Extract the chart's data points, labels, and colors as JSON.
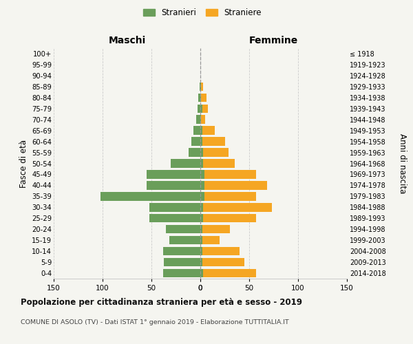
{
  "age_groups": [
    "0-4",
    "5-9",
    "10-14",
    "15-19",
    "20-24",
    "25-29",
    "30-34",
    "35-39",
    "40-44",
    "45-49",
    "50-54",
    "55-59",
    "60-64",
    "65-69",
    "70-74",
    "75-79",
    "80-84",
    "85-89",
    "90-94",
    "95-99",
    "100+"
  ],
  "birth_years": [
    "2014-2018",
    "2009-2013",
    "2004-2008",
    "1999-2003",
    "1994-1998",
    "1989-1993",
    "1984-1988",
    "1979-1983",
    "1974-1978",
    "1969-1973",
    "1964-1968",
    "1959-1963",
    "1954-1958",
    "1949-1953",
    "1944-1948",
    "1939-1943",
    "1934-1938",
    "1929-1933",
    "1924-1928",
    "1919-1923",
    "≤ 1918"
  ],
  "maschi": [
    38,
    37,
    38,
    32,
    35,
    52,
    52,
    102,
    55,
    55,
    30,
    12,
    9,
    7,
    4,
    3,
    2,
    1,
    0,
    0,
    0
  ],
  "femmine": [
    57,
    45,
    40,
    20,
    30,
    57,
    73,
    57,
    68,
    57,
    35,
    29,
    25,
    15,
    5,
    8,
    6,
    3,
    0,
    0,
    0
  ],
  "femmine_green": [
    3,
    2,
    2,
    2,
    2,
    3,
    3,
    4,
    4,
    4,
    3,
    3,
    2,
    2,
    1,
    2,
    1,
    1,
    0,
    0,
    0
  ],
  "color_maschi": "#6a9e5a",
  "color_femmine": "#f5a623",
  "title": "Popolazione per cittadinanza straniera per età e sesso - 2019",
  "subtitle": "COMUNE DI ASOLO (TV) - Dati ISTAT 1° gennaio 2019 - Elaborazione TUTTITALIA.IT",
  "ylabel_left": "Fasce di età",
  "ylabel_right": "Anni di nascita",
  "label_maschi": "Stranieri",
  "label_femmine": "Straniere",
  "header_left": "Maschi",
  "header_right": "Femmine",
  "xlim": 150,
  "background_color": "#f5f5f0",
  "grid_color": "#cccccc"
}
